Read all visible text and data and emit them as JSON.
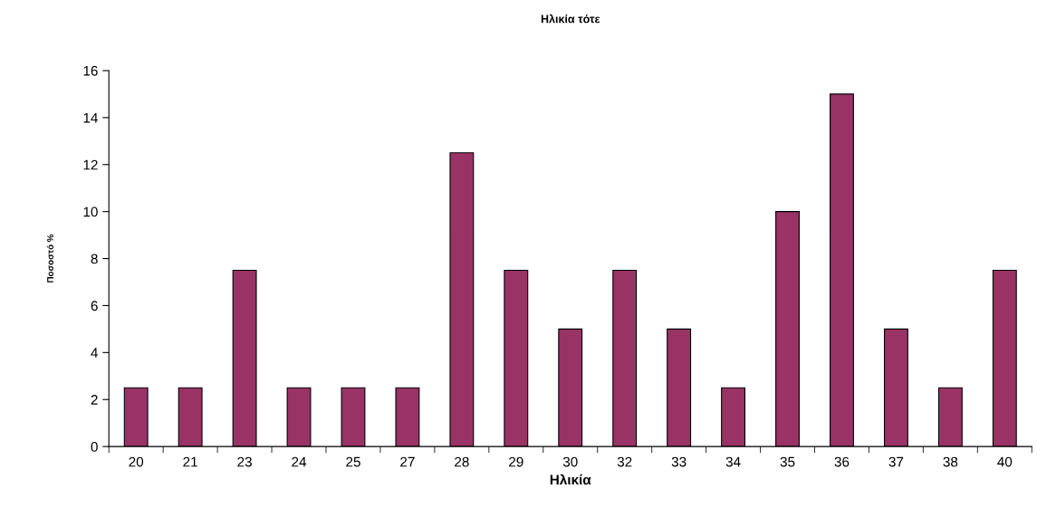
{
  "chart_data": {
    "type": "bar",
    "title": "Ηλικία τότε",
    "xlabel": "Ηλικία",
    "ylabel": "Ποσοστό %",
    "categories": [
      "20",
      "21",
      "23",
      "24",
      "25",
      "27",
      "28",
      "29",
      "30",
      "32",
      "33",
      "34",
      "35",
      "36",
      "37",
      "38",
      "40"
    ],
    "values": [
      2.5,
      2.5,
      7.5,
      2.5,
      2.5,
      2.5,
      12.5,
      7.5,
      5,
      7.5,
      5,
      2.5,
      10,
      15,
      5,
      2.5,
      7.5
    ],
    "color": "#993366",
    "ylim": [
      0,
      16
    ],
    "yticks": [
      0,
      2,
      4,
      6,
      8,
      10,
      12,
      14,
      16
    ],
    "grid": false,
    "legend": false
  }
}
